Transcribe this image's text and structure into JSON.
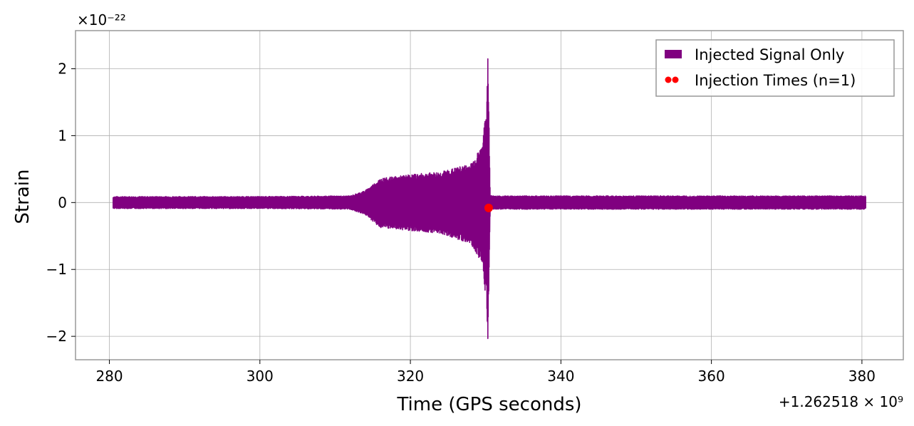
{
  "chart_data": {
    "type": "line",
    "xlabel": "Time (GPS seconds)",
    "ylabel": "Strain",
    "x_offset_label": "+1.262518 × 10⁹",
    "y_scale_label": "×10⁻²²",
    "xlim": [
      275.5,
      385.5
    ],
    "ylim": [
      -2.35,
      2.57
    ],
    "x_ticks": [
      280,
      300,
      320,
      340,
      360,
      380
    ],
    "x_tick_labels": [
      "280",
      "300",
      "320",
      "340",
      "360",
      "380"
    ],
    "y_ticks": [
      -2,
      -1,
      0,
      1,
      2
    ],
    "y_tick_labels": [
      "−2",
      "−1",
      "0",
      "1",
      "2"
    ],
    "grid": true,
    "legend_position": "top-right",
    "series": [
      {
        "name": "Injected Signal Only",
        "kind": "line",
        "color": "#800080",
        "envelope_x": [
          280.5,
          300,
          312,
          314,
          316,
          320,
          324,
          328,
          329.5,
          330.1,
          330.3,
          330.45,
          330.6,
          331,
          380.5
        ],
        "envelope_upper": [
          0.09,
          0.09,
          0.1,
          0.18,
          0.36,
          0.42,
          0.46,
          0.58,
          0.85,
          1.4,
          2.35,
          1.2,
          0.12,
          0.1,
          0.1
        ],
        "envelope_lower": [
          -0.09,
          -0.09,
          -0.1,
          -0.18,
          -0.38,
          -0.42,
          -0.46,
          -0.62,
          -0.9,
          -1.5,
          -2.15,
          -1.1,
          -0.12,
          -0.1,
          -0.1
        ]
      },
      {
        "name": "Injection Times (n=1)",
        "kind": "scatter",
        "color": "#ff0000",
        "points": [
          {
            "x": 330.4,
            "y": -0.08
          }
        ]
      }
    ]
  }
}
